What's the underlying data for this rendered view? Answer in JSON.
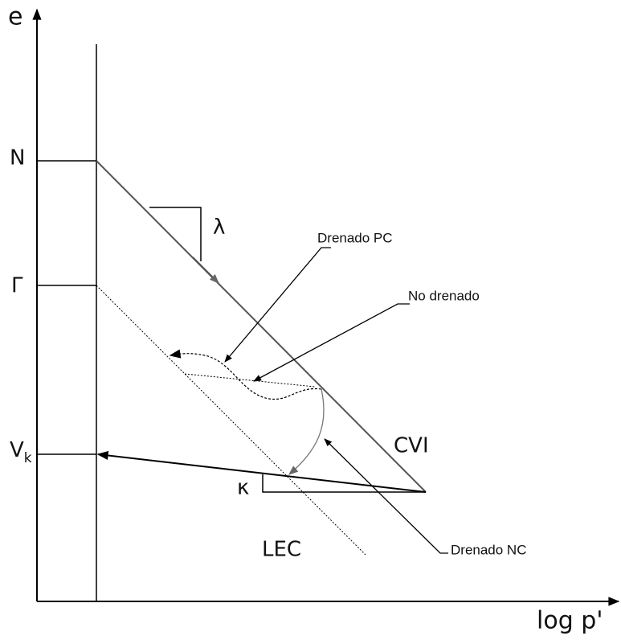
{
  "axes": {
    "y_label": "e",
    "x_label": "log p'"
  },
  "levels": {
    "n": "N",
    "gamma": "Γ",
    "vk": {
      "main": "V",
      "sub": "k"
    }
  },
  "slopes": {
    "lambda": "λ",
    "kappa": "κ"
  },
  "lines": {
    "cvi": "CVI",
    "lec": "LEC"
  },
  "callouts": {
    "drenado_pc": "Drenado PC",
    "no_drenado": "No drenado",
    "drenado_nc": "Drenado NC"
  }
}
